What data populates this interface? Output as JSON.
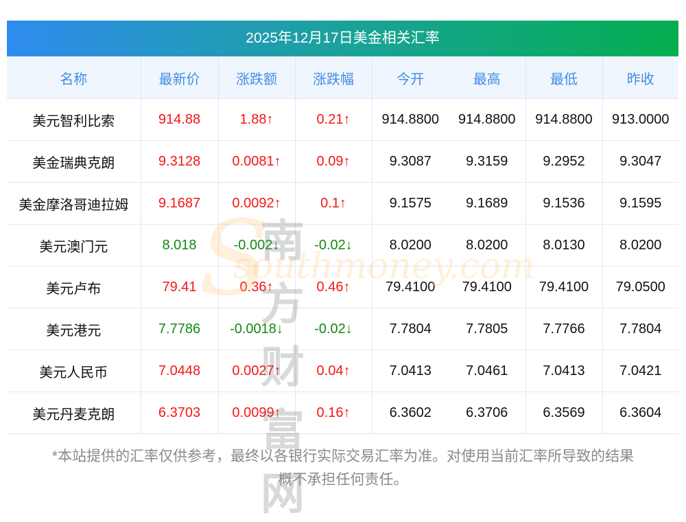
{
  "title": "2025年12月17日美金相关汇率",
  "headers": [
    "名称",
    "最新价",
    "涨跌额",
    "涨跌幅",
    "今开",
    "最高",
    "最低",
    "昨收"
  ],
  "rows": [
    {
      "name": "美元智利比索",
      "price": "914.88",
      "chg": "1.88↑",
      "pct": "0.21↑",
      "open": "914.8800",
      "high": "914.8800",
      "low": "914.8800",
      "prev": "913.0000",
      "dir": "up"
    },
    {
      "name": "美金瑞典克朗",
      "price": "9.3128",
      "chg": "0.0081↑",
      "pct": "0.09↑",
      "open": "9.3087",
      "high": "9.3159",
      "low": "9.2952",
      "prev": "9.3047",
      "dir": "up"
    },
    {
      "name": "美金摩洛哥迪拉姆",
      "price": "9.1687",
      "chg": "0.0092↑",
      "pct": "0.1↑",
      "open": "9.1575",
      "high": "9.1689",
      "low": "9.1536",
      "prev": "9.1595",
      "dir": "up"
    },
    {
      "name": "美元澳门元",
      "price": "8.018",
      "chg": "-0.002↓",
      "pct": "-0.02↓",
      "open": "8.0200",
      "high": "8.0200",
      "low": "8.0130",
      "prev": "8.0200",
      "dir": "down"
    },
    {
      "name": "美元卢布",
      "price": "79.41",
      "chg": "0.36↑",
      "pct": "0.46↑",
      "open": "79.4100",
      "high": "79.4100",
      "low": "79.4100",
      "prev": "79.0500",
      "dir": "up"
    },
    {
      "name": "美元港元",
      "price": "7.7786",
      "chg": "-0.0018↓",
      "pct": "-0.02↓",
      "open": "7.7804",
      "high": "7.7805",
      "low": "7.7766",
      "prev": "7.7804",
      "dir": "down"
    },
    {
      "name": "美元人民币",
      "price": "7.0448",
      "chg": "0.0027↑",
      "pct": "0.04↑",
      "open": "7.0413",
      "high": "7.0461",
      "low": "7.0413",
      "prev": "7.0421",
      "dir": "up"
    },
    {
      "name": "美元丹麦克朗",
      "price": "6.3703",
      "chg": "0.0099↑",
      "pct": "0.16↑",
      "open": "6.3602",
      "high": "6.3706",
      "low": "6.3569",
      "prev": "6.3604",
      "dir": "up"
    }
  ],
  "watermark": {
    "cn": "南方财富网",
    "en": "southmoney.com"
  },
  "footer": [
    "*本站提供的汇率仅供参考，最终以各银行实际交易汇率为准。对使用当前汇率所导致的结果",
    "概不承担任何责任。"
  ],
  "colors": {
    "up": "#f61515",
    "down": "#108a10",
    "header": "#3f8ee3"
  }
}
